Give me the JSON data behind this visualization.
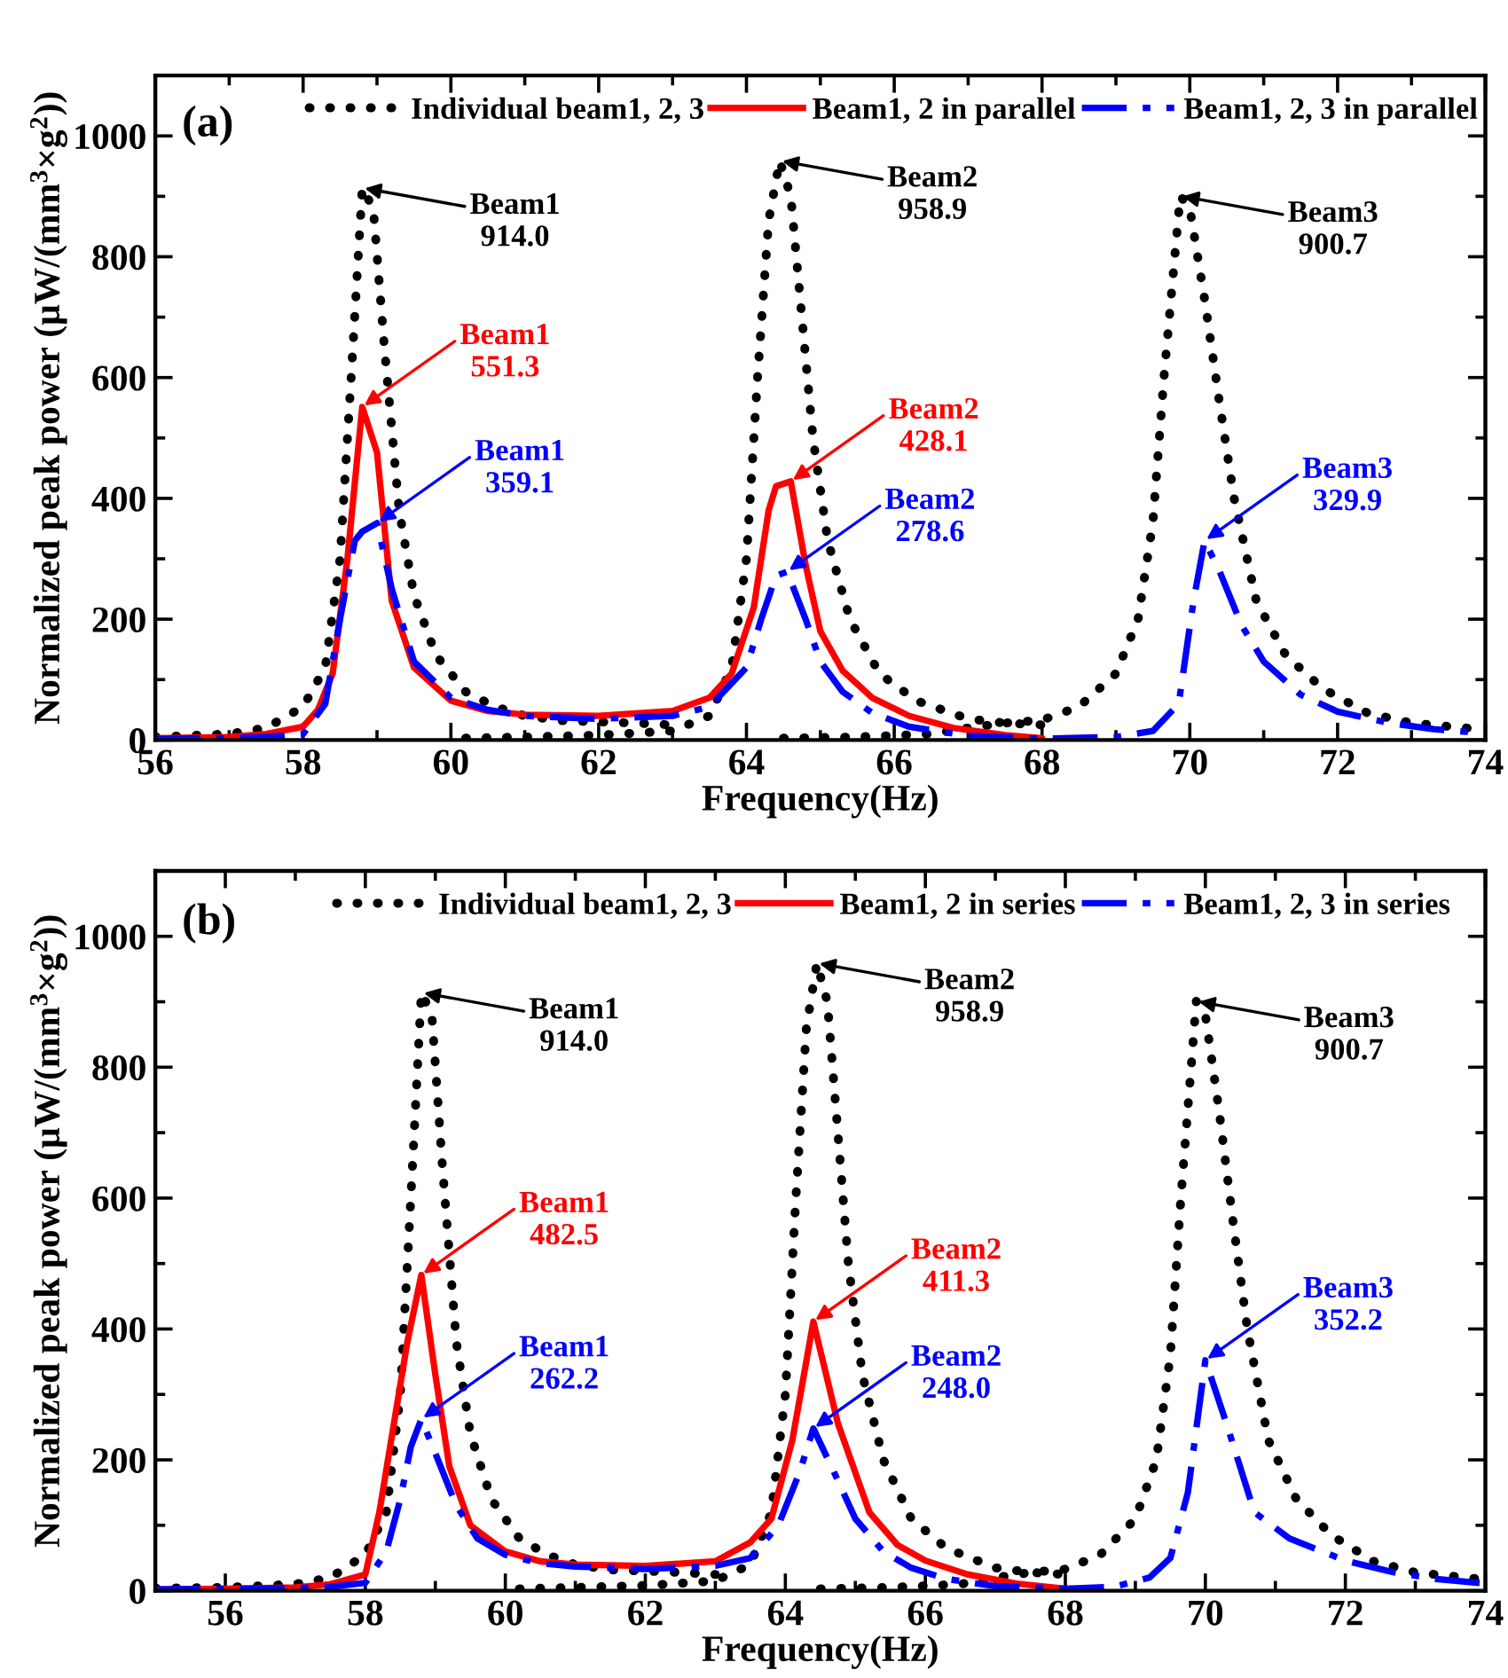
{
  "chart_data": [
    {
      "type": "line",
      "title": "(a)",
      "xlabel": "Frequency(Hz)",
      "ylabel": "Normalized peak power (μW/(mm$^{3}$×g$^{2}$))",
      "xlim": [
        56,
        74
      ],
      "ylim": [
        0,
        1100
      ],
      "xticks": [
        56,
        {
          "value": 57,
          "label": null
        },
        58,
        {
          "value": 59,
          "label": null
        },
        60,
        {
          "value": 61,
          "label": null
        },
        62,
        {
          "value": 63,
          "label": null
        },
        64,
        {
          "value": 65,
          "label": null
        },
        66,
        {
          "value": 67,
          "label": null
        },
        68,
        {
          "value": 69,
          "label": null
        },
        70,
        {
          "value": 71,
          "label": null
        },
        72,
        {
          "value": 73,
          "label": null
        },
        74
      ],
      "yticks": [
        0,
        {
          "value": 100,
          "label": null
        },
        200,
        {
          "value": 300,
          "label": null
        },
        400,
        {
          "value": 500,
          "label": null
        },
        600,
        {
          "value": 700,
          "label": null
        },
        800,
        {
          "value": 900,
          "label": null
        },
        1000,
        {
          "value": 1100,
          "label": null
        }
      ],
      "grid": false,
      "legend": "top",
      "marker": "none",
      "series": [
        {
          "name": "Individual beam1, 2, 3",
          "color": "#000000",
          "line_style": "dotted",
          "x": [
            56,
            57,
            57.5,
            58,
            58.3,
            58.5,
            58.65,
            58.8,
            58.95,
            59.1,
            59.3,
            59.5,
            59.8,
            60.2,
            60.6,
            61,
            61.5,
            62,
            62.5,
            63
          ],
          "values": [
            5,
            10,
            20,
            55,
            120,
            300,
            600,
            914.0,
            880,
            650,
            380,
            240,
            140,
            80,
            55,
            40,
            32,
            30,
            28,
            25
          ]
        },
        {
          "color": "#000000",
          "line_style": "dotted",
          "x": [
            60.2,
            61,
            62,
            63,
            63.5,
            63.8,
            64.0,
            64.15,
            64.3,
            64.45,
            64.6,
            64.75,
            64.9,
            65.1,
            65.4,
            65.8,
            66.3,
            67,
            67.5,
            68
          ],
          "values": [
            3,
            5,
            8,
            15,
            40,
            120,
            300,
            600,
            860,
            958.9,
            900,
            700,
            500,
            330,
            200,
            110,
            65,
            35,
            28,
            25
          ]
        },
        {
          "color": "#000000",
          "line_style": "dotted",
          "x": [
            64.5,
            65.5,
            66.5,
            67,
            67.5,
            68,
            68.5,
            69,
            69.3,
            69.5,
            69.65,
            69.87,
            70.0,
            70.2,
            70.4,
            70.6,
            70.9,
            71.3,
            71.8,
            72.4,
            73,
            74
          ],
          "values": [
            3,
            5,
            10,
            20,
            28,
            33,
            55,
            110,
            200,
            360,
            600,
            900.7,
            880,
            730,
            560,
            400,
            230,
            140,
            85,
            45,
            28,
            17
          ]
        },
        {
          "name": "Beam1, 2 in parallel",
          "color": "#ff0000",
          "line_style": "solid",
          "x": [
            56,
            57,
            57.5,
            58,
            58.2,
            58.4,
            58.6,
            58.8,
            59.0,
            59.2,
            59.5,
            60,
            60.5,
            61,
            62,
            63,
            63.5,
            63.8,
            64.1,
            64.3,
            64.4,
            64.6,
            64.8,
            65,
            65.3,
            65.7,
            66.2,
            66.8,
            67.5,
            68
          ],
          "values": [
            3,
            5,
            10,
            22,
            50,
            110,
            300,
            551.3,
            476,
            230,
            120,
            65,
            48,
            42,
            40,
            48,
            70,
            110,
            220,
            380,
            420,
            428.1,
            290,
            180,
            115,
            70,
            40,
            20,
            8,
            3
          ]
        },
        {
          "name": "Beam1, 2, 3 in parallel",
          "color": "#0000ff",
          "line_style": "dashdot",
          "x": [
            56,
            57,
            57.5,
            58,
            58.3,
            58.5,
            58.7,
            58.8,
            59.0,
            59.2,
            59.5,
            60,
            60.5,
            61,
            62,
            63,
            63.5,
            64,
            64.2,
            64.4,
            64.55,
            64.8,
            65,
            65.3,
            65.7,
            66.2,
            67,
            68,
            69,
            69.5,
            69.85,
            70.05,
            70.2,
            70.4,
            70.7,
            71,
            71.5,
            72,
            72.7,
            73.3,
            74
          ],
          "values": [
            2,
            3,
            5,
            10,
            60,
            200,
            330,
            345,
            359.1,
            250,
            130,
            70,
            50,
            40,
            35,
            40,
            55,
            120,
            200,
            272,
            278.6,
            200,
            130,
            80,
            45,
            22,
            7,
            2,
            5,
            15,
            60,
            230,
            329.9,
            280,
            190,
            130,
            75,
            47,
            28,
            18,
            11
          ]
        }
      ],
      "annotations": [
        {
          "text": "Beam1\n914.0",
          "x": 58.8,
          "y": 914.0
        },
        {
          "text": "Beam2\n958.9",
          "x": 64.45,
          "y": 958.9
        },
        {
          "text": "Beam3\n900.7",
          "x": 69.87,
          "y": 900.7
        },
        {
          "text": "Beam1\n551.3",
          "x": 58.8,
          "y": 551.3
        },
        {
          "text": "Beam2\n428.1",
          "x": 64.6,
          "y": 428.1
        },
        {
          "text": "Beam1\n359.1",
          "x": 59.0,
          "y": 359.1
        },
        {
          "text": "Beam2\n278.6",
          "x": 64.55,
          "y": 278.6
        },
        {
          "text": "Beam3\n329.9",
          "x": 70.2,
          "y": 329.9
        }
      ]
    },
    {
      "type": "line",
      "title": "(b)",
      "xlabel": "Frequency(Hz)",
      "ylabel": "Normalized peak power (μW/(mm$^{3}$×g$^{2}$))",
      "xlim": [
        55,
        74
      ],
      "ylim": [
        0,
        1100
      ],
      "xticks": [
        {
          "value": 55,
          "label": null
        },
        56,
        {
          "value": 57,
          "label": null
        },
        58,
        {
          "value": 59,
          "label": null
        },
        60,
        {
          "value": 61,
          "label": null
        },
        62,
        {
          "value": 63,
          "label": null
        },
        64,
        {
          "value": 65,
          "label": null
        },
        66,
        {
          "value": 67,
          "label": null
        },
        68,
        {
          "value": 69,
          "label": null
        },
        70,
        {
          "value": 71,
          "label": null
        },
        72,
        {
          "value": 73,
          "label": null
        },
        74
      ],
      "yticks": [
        0,
        {
          "value": 100,
          "label": null
        },
        200,
        {
          "value": 300,
          "label": null
        },
        400,
        {
          "value": 500,
          "label": null
        },
        600,
        {
          "value": 700,
          "label": null
        },
        800,
        {
          "value": 900,
          "label": null
        },
        1000,
        {
          "value": 1100,
          "label": null
        }
      ],
      "grid": false,
      "legend": "top",
      "marker": "none",
      "series": [
        {
          "name": "Individual beam1, 2, 3",
          "color": "#000000",
          "line_style": "dotted",
          "x": [
            55,
            56,
            57,
            57.5,
            58,
            58.3,
            58.5,
            58.65,
            58.8,
            58.95,
            59.1,
            59.3,
            59.5,
            59.8,
            60.2,
            60.6,
            61,
            61.5,
            62,
            62.5,
            63
          ],
          "values": [
            4,
            5,
            10,
            20,
            55,
            120,
            300,
            600,
            914.0,
            880,
            650,
            380,
            240,
            140,
            80,
            55,
            40,
            32,
            30,
            28,
            25
          ]
        },
        {
          "color": "#000000",
          "line_style": "dotted",
          "x": [
            60.2,
            61,
            62,
            63,
            63.5,
            63.8,
            64.0,
            64.15,
            64.3,
            64.45,
            64.6,
            64.75,
            64.9,
            65.1,
            65.4,
            65.8,
            66.3,
            67,
            67.5,
            68
          ],
          "values": [
            3,
            5,
            8,
            15,
            40,
            120,
            300,
            600,
            860,
            958.9,
            900,
            700,
            500,
            330,
            200,
            110,
            65,
            35,
            28,
            25
          ]
        },
        {
          "color": "#000000",
          "line_style": "dotted",
          "x": [
            64.5,
            65.5,
            66.5,
            67,
            67.5,
            68,
            68.5,
            69,
            69.3,
            69.5,
            69.65,
            69.87,
            70.0,
            70.2,
            70.4,
            70.6,
            70.9,
            71.3,
            71.8,
            72.4,
            73,
            74
          ],
          "values": [
            3,
            5,
            10,
            20,
            28,
            33,
            55,
            110,
            200,
            360,
            600,
            900.7,
            880,
            730,
            560,
            400,
            230,
            140,
            85,
            45,
            28,
            17
          ]
        },
        {
          "name": "Beam1, 2 in series",
          "color": "#ff0000",
          "line_style": "solid",
          "x": [
            55,
            56,
            57,
            57.5,
            58,
            58.2,
            58.4,
            58.6,
            58.8,
            59.0,
            59.2,
            59.5,
            60,
            60.5,
            61,
            62,
            63,
            63.5,
            63.8,
            64.1,
            64.4,
            64.75,
            65.2,
            65.6,
            66,
            66.6,
            67.3,
            68
          ],
          "values": [
            2,
            3,
            5,
            10,
            25,
            120,
            250,
            380,
            482.5,
            330,
            190,
            100,
            60,
            45,
            40,
            38,
            45,
            74,
            110,
            230,
            411.3,
            256,
            120,
            70,
            46,
            25,
            11,
            3
          ]
        },
        {
          "name": "Beam1, 2, 3 in series",
          "color": "#0000ff",
          "line_style": "dashdot",
          "x": [
            55,
            56,
            57,
            57.5,
            58,
            58.3,
            58.5,
            58.65,
            58.8,
            59,
            59.3,
            59.6,
            60,
            60.5,
            61,
            62,
            63,
            63.5,
            63.9,
            64.2,
            64.4,
            64.7,
            65,
            65.4,
            65.8,
            66.3,
            67,
            68,
            68.7,
            69.2,
            69.5,
            69.75,
            70.0,
            70.3,
            70.7,
            71.2,
            72,
            72.7,
            73.3,
            74
          ],
          "values": [
            2,
            3,
            4,
            6,
            12,
            60,
            140,
            220,
            262.2,
            210,
            130,
            80,
            55,
            42,
            37,
            33,
            38,
            50,
            100,
            180,
            248.0,
            180,
            110,
            60,
            35,
            18,
            7,
            3,
            6,
            20,
            50,
            150,
            352.2,
            256,
            120,
            80,
            46,
            28,
            18,
            11
          ]
        }
      ],
      "annotations": [
        {
          "text": "Beam1\n914.0",
          "x": 58.8,
          "y": 914.0
        },
        {
          "text": "Beam2\n958.9",
          "x": 64.45,
          "y": 958.9
        },
        {
          "text": "Beam3\n900.7",
          "x": 69.87,
          "y": 900.7
        },
        {
          "text": "Beam1\n482.5",
          "x": 58.8,
          "y": 482.5
        },
        {
          "text": "Beam2\n411.3",
          "x": 64.4,
          "y": 411.3
        },
        {
          "text": "Beam1\n262.2",
          "x": 58.8,
          "y": 262.2
        },
        {
          "text": "Beam2\n248.0",
          "x": 64.4,
          "y": 248.0
        },
        {
          "text": "Beam3\n352.2",
          "x": 70.0,
          "y": 352.2
        }
      ]
    }
  ]
}
